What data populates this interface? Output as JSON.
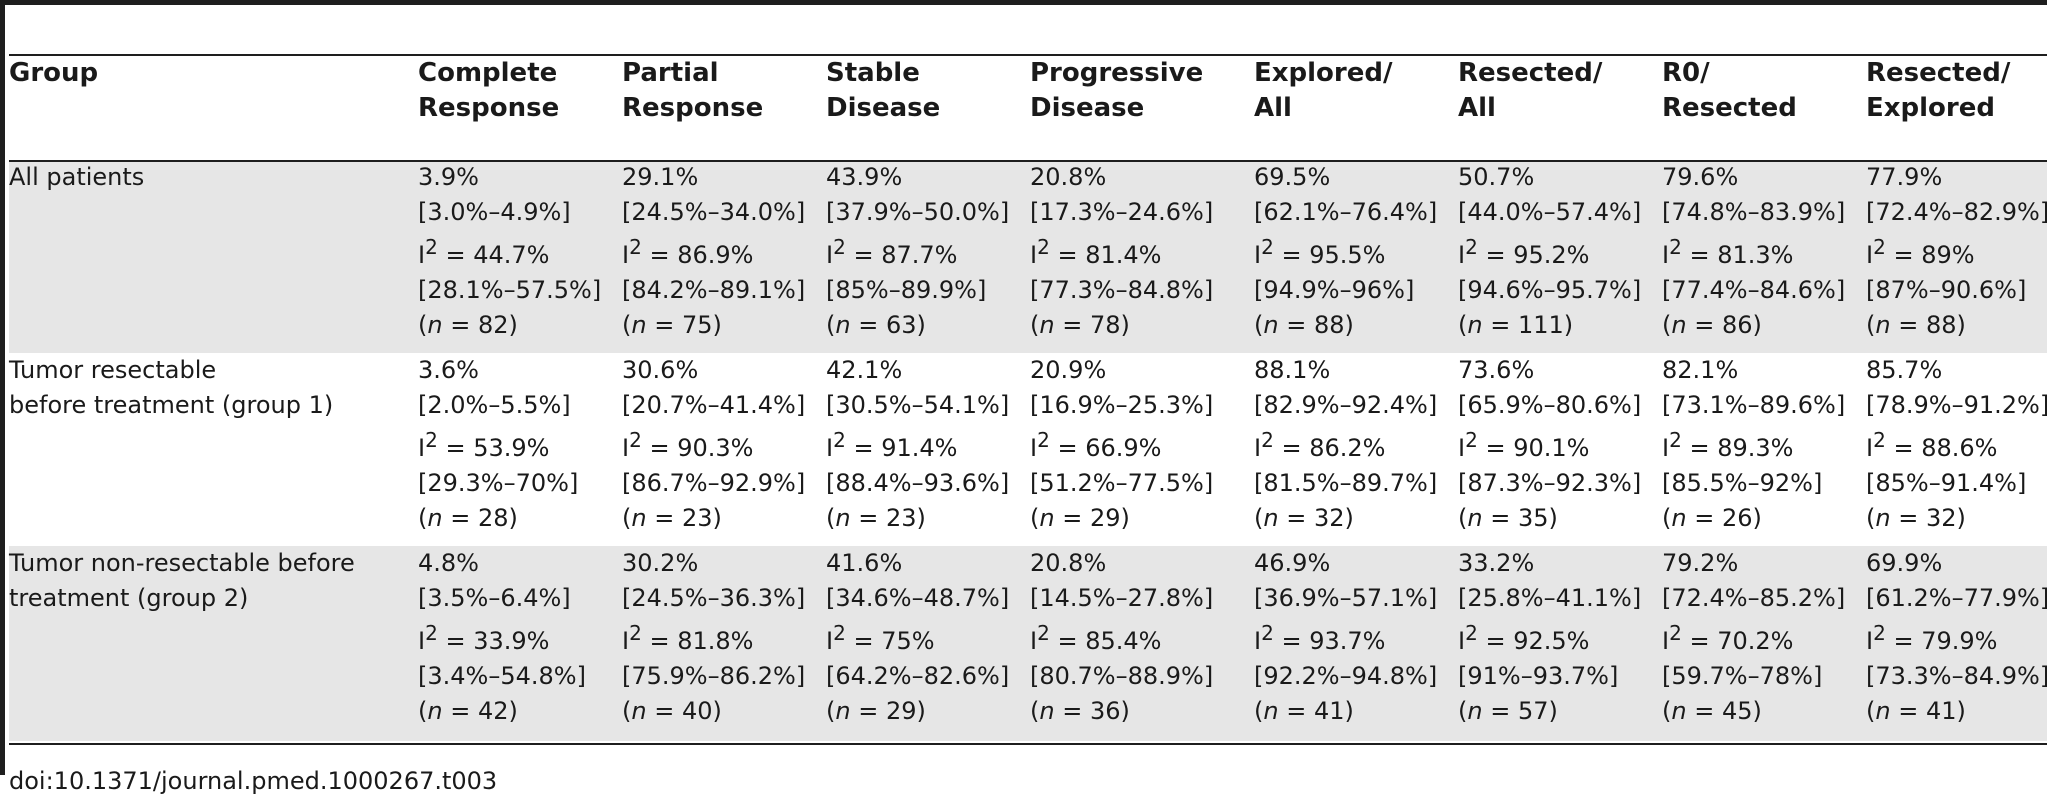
{
  "table": {
    "columns": [
      {
        "line1": "",
        "line2": "Group"
      },
      {
        "line1": "Complete",
        "line2": "Response"
      },
      {
        "line1": "Partial",
        "line2": "Response"
      },
      {
        "line1": "Stable",
        "line2": "Disease"
      },
      {
        "line1": "Progressive",
        "line2": "Disease"
      },
      {
        "line1": "Explored/",
        "line2": "All"
      },
      {
        "line1": "Resected/",
        "line2": "All"
      },
      {
        "line1": "R0/",
        "line2": "Resected"
      },
      {
        "line1": "Resected/",
        "line2": "Explored"
      }
    ],
    "rows": [
      {
        "group": [
          "All patients"
        ],
        "cells": [
          {
            "pct": "3.9%",
            "ci": "[3.0%–4.9%]",
            "i2": "44.7%",
            "i2ci": "[28.1%–57.5%]",
            "n": "82"
          },
          {
            "pct": "29.1%",
            "ci": "[24.5%–34.0%]",
            "i2": "86.9%",
            "i2ci": "[84.2%–89.1%]",
            "n": "75"
          },
          {
            "pct": "43.9%",
            "ci": "[37.9%–50.0%]",
            "i2": "87.7%",
            "i2ci": "[85%–89.9%]",
            "n": "63"
          },
          {
            "pct": "20.8%",
            "ci": "[17.3%–24.6%]",
            "i2": "81.4%",
            "i2ci": "[77.3%–84.8%]",
            "n": "78"
          },
          {
            "pct": "69.5%",
            "ci": "[62.1%–76.4%]",
            "i2": "95.5%",
            "i2ci": "[94.9%–96%]",
            "n": "88"
          },
          {
            "pct": "50.7%",
            "ci": "[44.0%–57.4%]",
            "i2": "95.2%",
            "i2ci": "[94.6%–95.7%]",
            "n": "111"
          },
          {
            "pct": "79.6%",
            "ci": "[74.8%–83.9%]",
            "i2": "81.3%",
            "i2ci": "[77.4%–84.6%]",
            "n": "86"
          },
          {
            "pct": "77.9%",
            "ci": "[72.4%–82.9%]",
            "i2": "89%",
            "i2ci": "[87%–90.6%]",
            "n": "88"
          }
        ]
      },
      {
        "group": [
          "Tumor resectable",
          "before treatment (group 1)"
        ],
        "cells": [
          {
            "pct": "3.6%",
            "ci": "[2.0%–5.5%]",
            "i2": "53.9%",
            "i2ci": "[29.3%–70%]",
            "n": "28"
          },
          {
            "pct": "30.6%",
            "ci": "[20.7%–41.4%]",
            "i2": "90.3%",
            "i2ci": "[86.7%–92.9%]",
            "n": "23"
          },
          {
            "pct": "42.1%",
            "ci": "[30.5%–54.1%]",
            "i2": "91.4%",
            "i2ci": "[88.4%–93.6%]",
            "n": "23"
          },
          {
            "pct": "20.9%",
            "ci": "[16.9%–25.3%]",
            "i2": "66.9%",
            "i2ci": "[51.2%–77.5%]",
            "n": "29"
          },
          {
            "pct": "88.1%",
            "ci": "[82.9%–92.4%]",
            "i2": "86.2%",
            "i2ci": "[81.5%–89.7%]",
            "n": "32"
          },
          {
            "pct": "73.6%",
            "ci": "[65.9%–80.6%]",
            "i2": "90.1%",
            "i2ci": "[87.3%–92.3%]",
            "n": "35"
          },
          {
            "pct": "82.1%",
            "ci": "[73.1%–89.6%]",
            "i2": "89.3%",
            "i2ci": "[85.5%–92%]",
            "n": "26"
          },
          {
            "pct": "85.7%",
            "ci": "[78.9%–91.2%]",
            "i2": "88.6%",
            "i2ci": "[85%–91.4%]",
            "n": "32"
          }
        ]
      },
      {
        "group": [
          "Tumor non-resectable before",
          "treatment (group 2)"
        ],
        "cells": [
          {
            "pct": "4.8%",
            "ci": "[3.5%–6.4%]",
            "i2": "33.9%",
            "i2ci": "[3.4%–54.8%]",
            "n": "42"
          },
          {
            "pct": "30.2%",
            "ci": "[24.5%–36.3%]",
            "i2": "81.8%",
            "i2ci": "[75.9%–86.2%]",
            "n": "40"
          },
          {
            "pct": "41.6%",
            "ci": "[34.6%–48.7%]",
            "i2": "75%",
            "i2ci": "[64.2%–82.6%]",
            "n": "29"
          },
          {
            "pct": "20.8%",
            "ci": "[14.5%–27.8%]",
            "i2": "85.4%",
            "i2ci": "[80.7%–88.9%]",
            "n": "36"
          },
          {
            "pct": "46.9%",
            "ci": "[36.9%–57.1%]",
            "i2": "93.7%",
            "i2ci": "[92.2%–94.8%]",
            "n": "41"
          },
          {
            "pct": "33.2%",
            "ci": "[25.8%–41.1%]",
            "i2": "92.5%",
            "i2ci": "[91%–93.7%]",
            "n": "57"
          },
          {
            "pct": "79.2%",
            "ci": "[72.4%–85.2%]",
            "i2": "70.2%",
            "i2ci": "[59.7%–78%]",
            "n": "45"
          },
          {
            "pct": "69.9%",
            "ci": "[61.2%–77.9%]",
            "i2": "79.9%",
            "i2ci": "[73.3%–84.9%]",
            "n": "41"
          }
        ]
      }
    ]
  },
  "caption": "doi:10.1371/journal.pmed.1000267.t003"
}
